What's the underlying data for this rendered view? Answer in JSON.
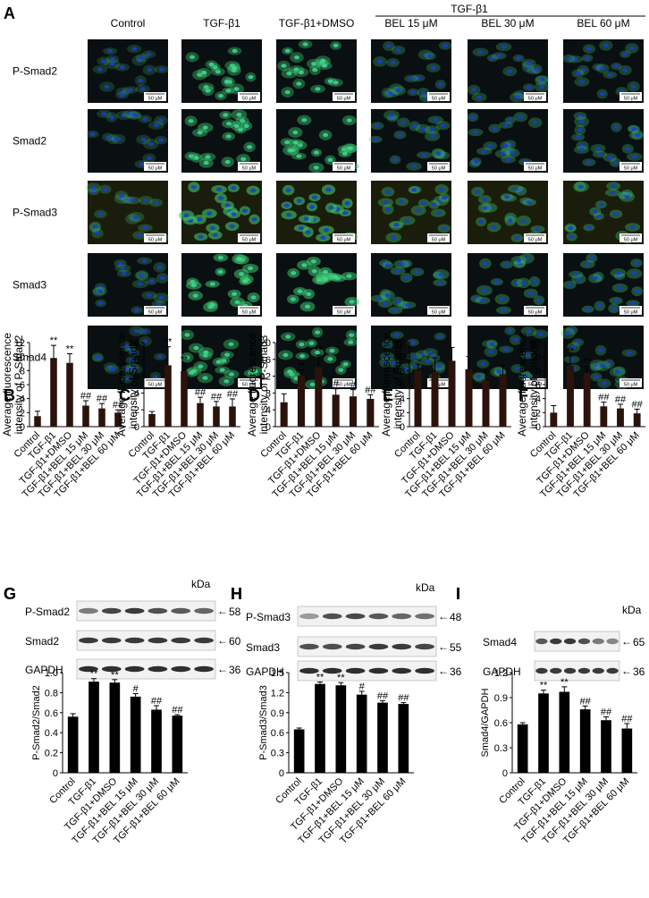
{
  "panel_a": {
    "label": "A",
    "columns": [
      "Control",
      "TGF-β1",
      "TGF-β1+DMSO",
      "BEL 15 μM",
      "BEL 30 μM",
      "BEL 60 μM"
    ],
    "group_header": "TGF-β1",
    "rows": [
      "P-Smad2",
      "Smad2",
      "P-Smad3",
      "Smad3",
      "Smad4"
    ],
    "scale_bar": "50 μM"
  },
  "bar_categories_bcdef": [
    "Control",
    "TGF-β1",
    "TGF-β1+DMSO",
    "TGF-β1+BEL 15 μM",
    "TGF-β1+BEL 30 μM",
    "TGF-β1+BEL 60 μM"
  ],
  "bar_categories_ghi": [
    "Control",
    "TGF-β1",
    "TGF-β1+DMSO",
    "TGF-β1+BEL 15 μM",
    "TGF-β1+BEL 30 μM",
    "TGF-β1+BEL 60 μM"
  ],
  "western": {
    "G": {
      "label": "G",
      "kda": "kDa",
      "bands": [
        {
          "name": "P-Smad2",
          "mw": "58"
        },
        {
          "name": "Smad2",
          "mw": "60"
        },
        {
          "name": "GAPDH",
          "mw": "36"
        }
      ]
    },
    "H": {
      "label": "H",
      "kda": "kDa",
      "bands": [
        {
          "name": "P-Smad3",
          "mw": "48"
        },
        {
          "name": "Smad3",
          "mw": "55"
        },
        {
          "name": "GAPDH",
          "mw": "36"
        }
      ]
    },
    "I": {
      "label": "I",
      "kda": "kDa",
      "bands": [
        {
          "name": "Smad4",
          "mw": "65"
        },
        {
          "name": "GAPDH",
          "mw": "36"
        }
      ]
    }
  },
  "colors": {
    "bar_bcdef": "#2b120b",
    "bar_ghi": "#000000",
    "nuclei": "#1d3ac8",
    "cytoplasm": "#3ec46a",
    "background": "#0a0f12"
  },
  "chart_data": [
    {
      "panel": "B",
      "type": "bar",
      "ylabel": "Average fluorescence intensity of P-Smad2",
      "ylim": [
        0,
        12
      ],
      "yticks": [
        0,
        2,
        4,
        6,
        8,
        10,
        12
      ],
      "values": [
        1.5,
        9.8,
        9.1,
        3.0,
        2.6,
        2.0
      ],
      "errors": [
        0.7,
        1.8,
        1.3,
        0.7,
        0.7,
        0.4
      ],
      "annotations": [
        "",
        "**",
        "**",
        "##",
        "##",
        "##"
      ]
    },
    {
      "panel": "C",
      "type": "bar",
      "ylabel": "Average fluorescence intensity of Smad2",
      "ylim": [
        0,
        10
      ],
      "yticks": [
        0,
        2,
        4,
        6,
        8,
        10
      ],
      "values": [
        1.5,
        7.3,
        6.6,
        2.8,
        2.4,
        2.4
      ],
      "errors": [
        0.3,
        2.2,
        0.8,
        0.7,
        0.6,
        0.9
      ],
      "annotations": [
        "",
        "**",
        "**",
        "##",
        "##",
        "##"
      ]
    },
    {
      "panel": "D",
      "type": "bar",
      "ylabel": "Average fluorescence intensity of P-Smad3",
      "ylim": [
        0,
        20
      ],
      "yticks": [
        0,
        4,
        8,
        12,
        16,
        20
      ],
      "values": [
        5.8,
        12.2,
        14.2,
        7.6,
        7.2,
        6.6
      ],
      "errors": [
        2.0,
        1.2,
        2.8,
        1.4,
        1.6,
        1.0
      ],
      "annotations": [
        "",
        "**",
        "**",
        "#",
        "#",
        "##"
      ]
    },
    {
      "panel": "E",
      "type": "bar",
      "ylabel": "Average fluorescence intensity of Smad3",
      "ylim": [
        0,
        12
      ],
      "yticks": [
        0,
        2,
        4,
        6,
        8,
        10,
        12
      ],
      "values": [
        8.1,
        7.8,
        9.4,
        8.2,
        6.6,
        7.5
      ],
      "errors": [
        0.8,
        2.0,
        1.9,
        1.8,
        1.4,
        1.3
      ],
      "annotations": [
        "",
        "",
        "",
        "",
        "",
        ""
      ]
    },
    {
      "panel": "F",
      "type": "bar",
      "ylabel": "Average fluorescence intensity of Smad4",
      "ylim": [
        0,
        12
      ],
      "yticks": [
        0,
        2,
        4,
        6,
        8,
        10,
        12
      ],
      "values": [
        2.0,
        8.7,
        7.7,
        2.9,
        2.6,
        1.9
      ],
      "errors": [
        1.0,
        1.4,
        0.9,
        0.6,
        0.6,
        0.6
      ],
      "annotations": [
        "",
        "**",
        "**",
        "##",
        "##",
        "##"
      ]
    },
    {
      "panel": "G",
      "type": "bar",
      "ylabel": "P-Smad2/Smad2",
      "ylim": [
        0,
        1.0
      ],
      "yticks": [
        "0",
        "0.2",
        "0.4",
        "0.6",
        "0.8",
        "1.0"
      ],
      "values": [
        0.56,
        0.91,
        0.9,
        0.76,
        0.63,
        0.57
      ],
      "errors": [
        0.03,
        0.03,
        0.03,
        0.03,
        0.04,
        0.01
      ],
      "annotations": [
        "",
        "**",
        "**",
        "#",
        "##",
        "##"
      ]
    },
    {
      "panel": "H",
      "type": "bar",
      "ylabel": "P-Smad3/Smad3",
      "ylim": [
        0,
        1.5
      ],
      "yticks": [
        "0",
        "0.3",
        "0.6",
        "0.9",
        "1.2",
        "1.5"
      ],
      "values": [
        0.65,
        1.33,
        1.31,
        1.17,
        1.05,
        1.03
      ],
      "errors": [
        0.02,
        0.03,
        0.04,
        0.05,
        0.03,
        0.02
      ],
      "annotations": [
        "",
        "**",
        "**",
        "#",
        "##",
        "##"
      ]
    },
    {
      "panel": "I",
      "type": "bar",
      "ylabel": "Smad4/GAPDH",
      "ylim": [
        0,
        1.2
      ],
      "yticks": [
        "0",
        "0.3",
        "0.6",
        "0.9",
        "1.2"
      ],
      "values": [
        0.58,
        0.95,
        0.97,
        0.76,
        0.63,
        0.53
      ],
      "errors": [
        0.02,
        0.04,
        0.06,
        0.04,
        0.04,
        0.06
      ],
      "annotations": [
        "",
        "**",
        "**",
        "##",
        "##",
        "##"
      ]
    }
  ]
}
